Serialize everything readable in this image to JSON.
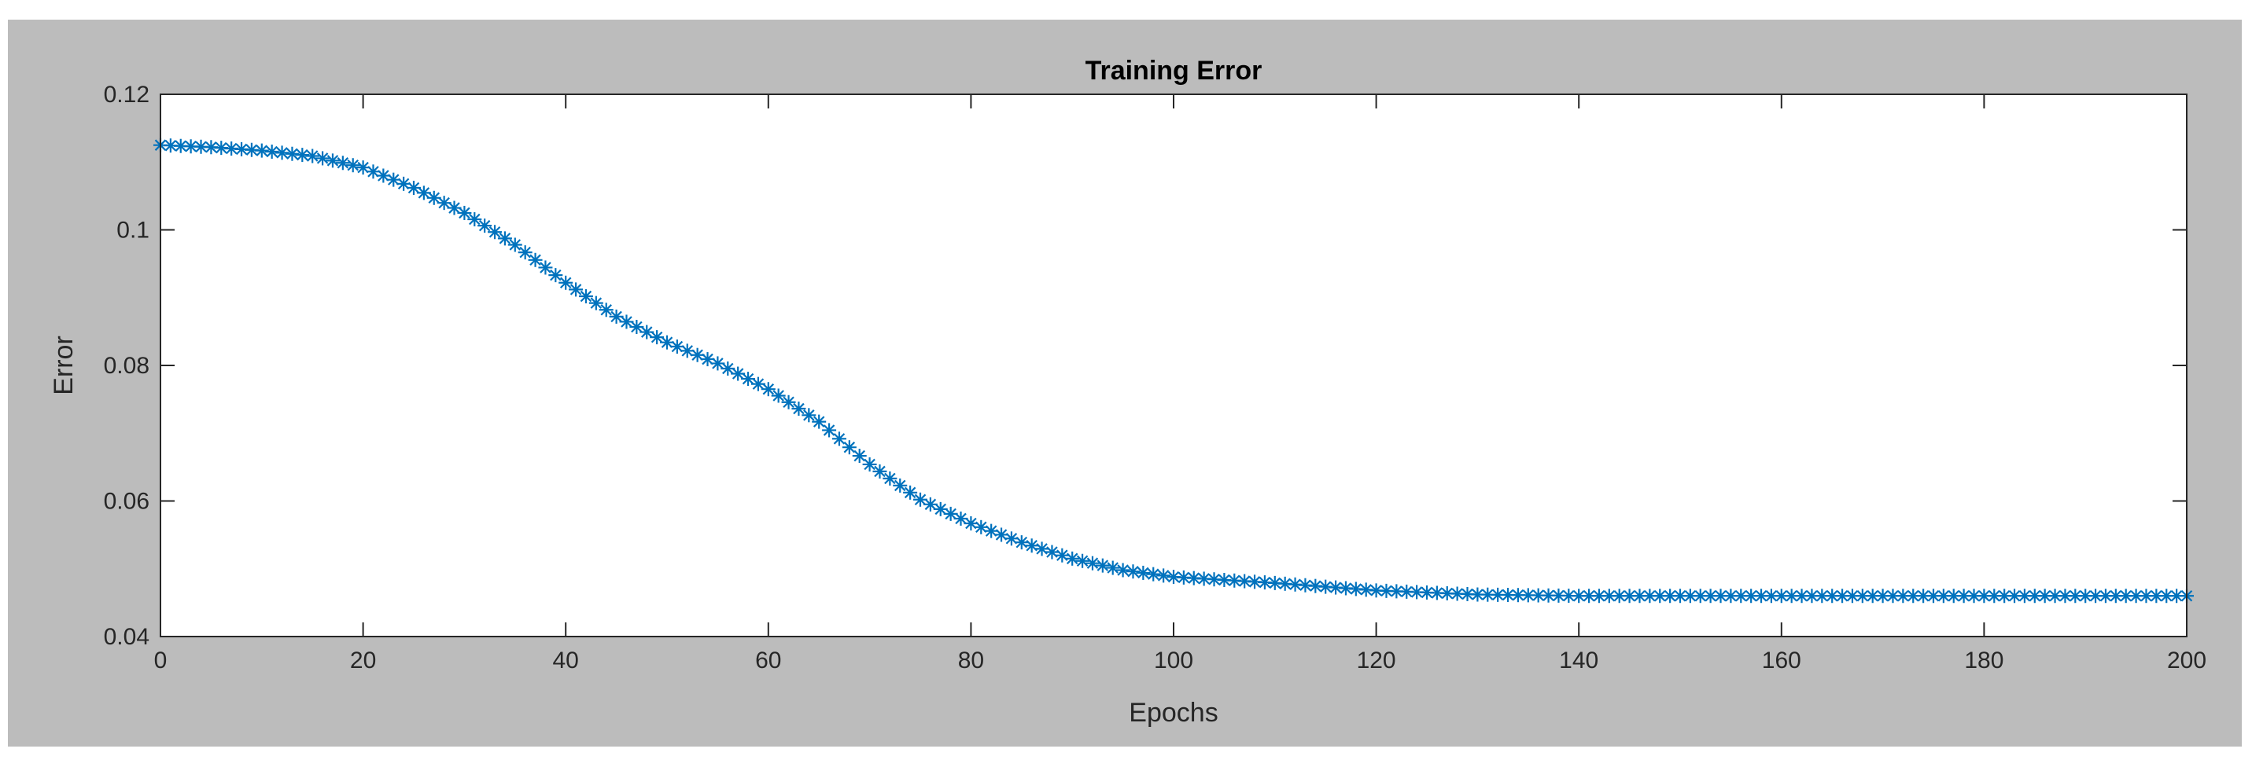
{
  "figure": {
    "background": "#bcbcbc",
    "axes_background": "#ffffff",
    "axis_color": "#262626"
  },
  "chart_data": {
    "type": "line",
    "title": "Training Error",
    "xlabel": "Epochs",
    "ylabel": "Error",
    "xlim": [
      0,
      200
    ],
    "ylim": [
      0.04,
      0.12
    ],
    "xticks": [
      0,
      20,
      40,
      60,
      80,
      100,
      120,
      140,
      160,
      180,
      200
    ],
    "yticks": [
      0.04,
      0.06,
      0.08,
      0.1,
      0.12
    ],
    "xtick_labels": [
      "0",
      "20",
      "40",
      "60",
      "80",
      "100",
      "120",
      "140",
      "160",
      "180",
      "200"
    ],
    "ytick_labels": [
      "0.04",
      "0.06",
      "0.08",
      "0.1",
      "0.12"
    ],
    "grid": false,
    "legend": "none",
    "series": [
      {
        "marker": "asterisk",
        "color": "#0072bd",
        "x": [
          0,
          5,
          10,
          15,
          20,
          25,
          30,
          35,
          40,
          45,
          50,
          55,
          60,
          65,
          70,
          75,
          80,
          85,
          90,
          95,
          100,
          110,
          120,
          130,
          140,
          150,
          160,
          170,
          180,
          190,
          200
        ],
        "values": [
          0.1125,
          0.1122,
          0.1117,
          0.1109,
          0.1092,
          0.1062,
          0.1025,
          0.0978,
          0.0922,
          0.0872,
          0.0834,
          0.0803,
          0.0765,
          0.0717,
          0.0654,
          0.0602,
          0.0567,
          0.0539,
          0.0515,
          0.0498,
          0.0488,
          0.0479,
          0.0468,
          0.0462,
          0.046,
          0.046,
          0.046,
          0.046,
          0.046,
          0.046,
          0.046
        ]
      }
    ]
  }
}
